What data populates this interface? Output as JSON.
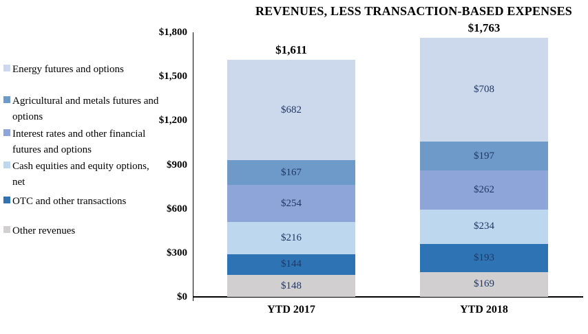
{
  "chart_data": {
    "type": "bar",
    "subtype": "stacked",
    "title": "REVENUES, LESS TRANSACTION-BASED EXPENSES",
    "categories": [
      "YTD 2017",
      "YTD 2018"
    ],
    "series": [
      {
        "name": "Other revenues",
        "color": "#D1CFCF",
        "values": [
          148,
          169
        ]
      },
      {
        "name": "OTC and other transactions",
        "color": "#2E74B5",
        "values": [
          144,
          193
        ]
      },
      {
        "name": "Cash equities and equity options, net",
        "color": "#BDD7EE",
        "values": [
          216,
          234
        ]
      },
      {
        "name": "Interest rates and other financial futures and options",
        "color": "#8EA5D9",
        "values": [
          254,
          262
        ]
      },
      {
        "name": "Agricultural and metals futures and options",
        "color": "#6D9AC8",
        "values": [
          167,
          197
        ]
      },
      {
        "name": "Energy futures and options",
        "color": "#CCD8EC",
        "values": [
          682,
          708
        ]
      }
    ],
    "totals": [
      "$1,611",
      "$1,763"
    ],
    "value_prefix": "$",
    "ylim": [
      0,
      1800
    ],
    "yticks": [
      "$0",
      "$300",
      "$600",
      "$900",
      "$1,200",
      "$1,500",
      "$1,800"
    ],
    "legend_position": "left",
    "legend_order": "top-of-stack-first",
    "grid": false,
    "value_label_color": "#1F3864",
    "axis_color": "#000000"
  }
}
